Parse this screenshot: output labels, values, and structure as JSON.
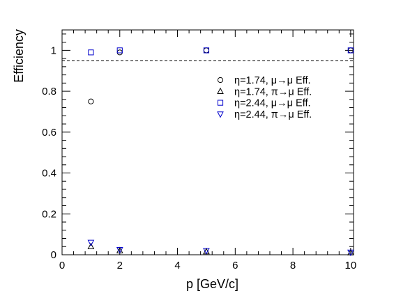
{
  "chart_data": {
    "type": "scatter",
    "title": "",
    "xlabel": "p [GeV/c]",
    "ylabel": "Efficiency",
    "xlim": [
      0,
      10.1
    ],
    "ylim": [
      0,
      1.1
    ],
    "x_ticks": [
      "0",
      "2",
      "4",
      "6",
      "8",
      "10"
    ],
    "y_ticks": [
      "0",
      "0.2",
      "0.4",
      "0.6",
      "0.8",
      "1"
    ],
    "reference_line": {
      "y": 0.95,
      "style": "dashed"
    },
    "grid": false,
    "legend_position": "top-right",
    "series": [
      {
        "name": "η=1.74,   μ→μ Eff.",
        "marker": "circle",
        "color": "#000000",
        "x": [
          1,
          2,
          5,
          10
        ],
        "y": [
          0.75,
          0.99,
          1.0,
          1.0
        ]
      },
      {
        "name": "η=1.74,   π→μ Eff.",
        "marker": "triangle-up",
        "color": "#000000",
        "x": [
          1,
          2,
          5,
          10
        ],
        "y": [
          0.04,
          0.02,
          0.015,
          0.01
        ]
      },
      {
        "name": "η=2.44,   μ→μ Eff.",
        "marker": "square",
        "color": "#0000cc",
        "x": [
          1,
          2,
          5,
          10
        ],
        "y": [
          0.99,
          1.0,
          1.0,
          1.0
        ]
      },
      {
        "name": "η=2.44,   π→μ Eff.",
        "marker": "triangle-down",
        "color": "#0000cc",
        "x": [
          1,
          2,
          5,
          10
        ],
        "y": [
          0.06,
          0.025,
          0.02,
          0.012
        ]
      }
    ]
  }
}
